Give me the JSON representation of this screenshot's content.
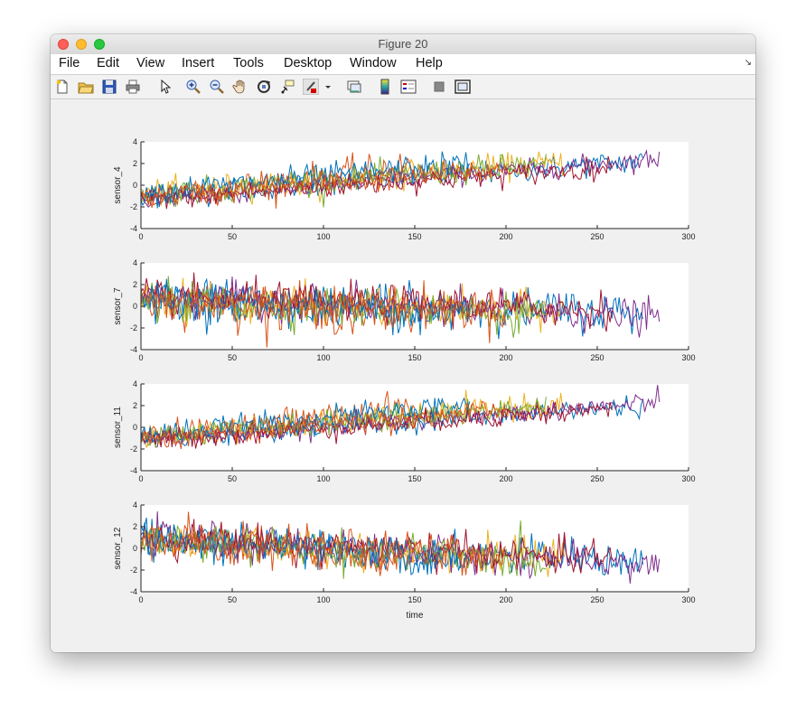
{
  "window": {
    "title": "Figure 20"
  },
  "menubar": {
    "items": [
      "File",
      "Edit",
      "View",
      "Insert",
      "Tools",
      "Desktop",
      "Window",
      "Help"
    ]
  },
  "toolbar": {
    "icons": [
      "new-figure-icon",
      "open-file-icon",
      "save-icon",
      "print-icon",
      "pointer-icon",
      "zoom-in-icon",
      "zoom-out-icon",
      "pan-icon",
      "rotate-3d-icon",
      "data-cursor-icon",
      "brush-icon",
      "brush-dropdown-icon",
      "link-plot-icon",
      "insert-colorbar-icon",
      "insert-legend-icon",
      "hide-plot-tools-icon",
      "show-plot-tools-icon"
    ]
  },
  "chart_data": {
    "type": "line",
    "xlabel": "time",
    "xlim": [
      0,
      300
    ],
    "xticks": [
      0,
      50,
      100,
      150,
      200,
      250,
      300
    ],
    "colors": [
      "#0072BD",
      "#D95319",
      "#EDB120",
      "#7E2F8E",
      "#77AC30",
      "#A2142F"
    ],
    "subplots": [
      {
        "ylabel": "sensor_4",
        "ylim": [
          -4,
          4
        ],
        "yticks": [
          -4,
          -2,
          0,
          2,
          4
        ],
        "kind": "rising",
        "series": [
          {
            "length": 275,
            "start": -1.0,
            "end": 2.2,
            "noise": 0.55
          },
          {
            "length": 150,
            "start": -1.2,
            "end": 1.8,
            "noise": 0.7
          },
          {
            "length": 232,
            "start": -0.8,
            "end": 2.1,
            "noise": 0.6
          },
          {
            "length": 284,
            "start": -1.4,
            "end": 2.4,
            "noise": 0.45
          },
          {
            "length": 222,
            "start": -0.9,
            "end": 1.9,
            "noise": 0.6
          },
          {
            "length": 258,
            "start": -1.3,
            "end": 1.6,
            "noise": 0.5
          },
          {
            "length": 180,
            "start": -0.7,
            "end": 2.0,
            "noise": 0.6
          },
          {
            "length": 200,
            "start": -1.1,
            "end": 1.5,
            "noise": 0.55
          }
        ]
      },
      {
        "ylabel": "sensor_7",
        "ylim": [
          -4,
          4
        ],
        "yticks": [
          -4,
          -2,
          0,
          2,
          4
        ],
        "kind": "falling",
        "series": [
          {
            "length": 275,
            "start": 0.8,
            "end": -0.6,
            "noise": 0.9
          },
          {
            "length": 150,
            "start": 0.6,
            "end": -0.8,
            "noise": 1.0
          },
          {
            "length": 232,
            "start": 0.7,
            "end": -0.5,
            "noise": 0.85
          },
          {
            "length": 284,
            "start": 0.9,
            "end": -1.0,
            "noise": 0.8
          },
          {
            "length": 222,
            "start": 0.5,
            "end": -0.7,
            "noise": 0.9
          },
          {
            "length": 258,
            "start": 0.8,
            "end": -0.3,
            "noise": 0.85
          },
          {
            "length": 180,
            "start": 0.6,
            "end": -0.6,
            "noise": 0.9
          },
          {
            "length": 200,
            "start": 0.7,
            "end": -0.4,
            "noise": 0.9
          }
        ]
      },
      {
        "ylabel": "sensor_11",
        "ylim": [
          -4,
          4
        ],
        "yticks": [
          -4,
          -2,
          0,
          2,
          4
        ],
        "kind": "rising",
        "series": [
          {
            "length": 275,
            "start": -1.1,
            "end": 2.0,
            "noise": 0.5
          },
          {
            "length": 150,
            "start": -1.0,
            "end": 2.0,
            "noise": 0.6
          },
          {
            "length": 232,
            "start": -0.9,
            "end": 2.2,
            "noise": 0.55
          },
          {
            "length": 284,
            "start": -1.3,
            "end": 2.3,
            "noise": 0.45
          },
          {
            "length": 222,
            "start": -1.0,
            "end": 2.0,
            "noise": 0.55
          },
          {
            "length": 258,
            "start": -1.2,
            "end": 1.7,
            "noise": 0.5
          },
          {
            "length": 180,
            "start": -0.8,
            "end": 2.1,
            "noise": 0.55
          },
          {
            "length": 200,
            "start": -1.1,
            "end": 1.6,
            "noise": 0.5
          }
        ]
      },
      {
        "ylabel": "sensor_12",
        "ylim": [
          -4,
          4
        ],
        "yticks": [
          -4,
          -2,
          0,
          2,
          4
        ],
        "kind": "falling",
        "series": [
          {
            "length": 275,
            "start": 1.0,
            "end": -1.2,
            "noise": 0.8
          },
          {
            "length": 150,
            "start": 0.8,
            "end": -1.5,
            "noise": 0.9
          },
          {
            "length": 232,
            "start": 0.9,
            "end": -1.0,
            "noise": 0.8
          },
          {
            "length": 284,
            "start": 1.1,
            "end": -1.6,
            "noise": 0.75
          },
          {
            "length": 222,
            "start": 0.7,
            "end": -1.2,
            "noise": 0.85
          },
          {
            "length": 258,
            "start": 1.0,
            "end": -0.9,
            "noise": 0.8
          },
          {
            "length": 180,
            "start": 0.8,
            "end": -1.1,
            "noise": 0.85
          },
          {
            "length": 200,
            "start": 0.9,
            "end": -0.8,
            "noise": 0.85
          }
        ]
      }
    ]
  }
}
